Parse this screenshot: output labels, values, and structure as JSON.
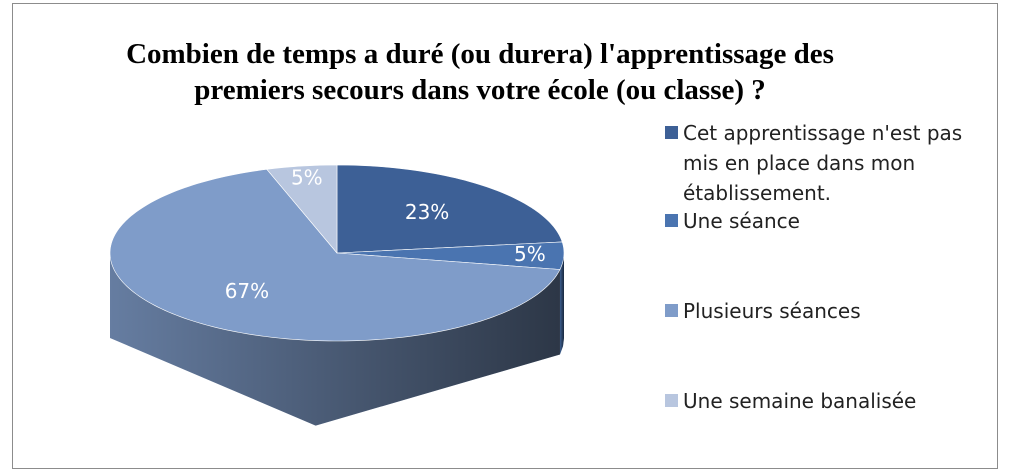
{
  "chart_data": {
    "type": "pie3d",
    "title": "Combien de temps a duré (ou durera) l'apprentissage des premiers secours dans votre école (ou classe) ?",
    "categories": [
      "Cet apprentissage n'est pas mis en place dans mon établissement.",
      "Une séance",
      "Plusieurs séances",
      "Une semaine banalisée"
    ],
    "values": [
      23,
      5,
      67,
      5
    ],
    "value_labels": [
      "23%",
      "5%",
      "67%",
      "5%"
    ],
    "colors": [
      "#3d6096",
      "#4a74b0",
      "#7f9cc9",
      "#b8c6df"
    ],
    "legend": "right"
  }
}
